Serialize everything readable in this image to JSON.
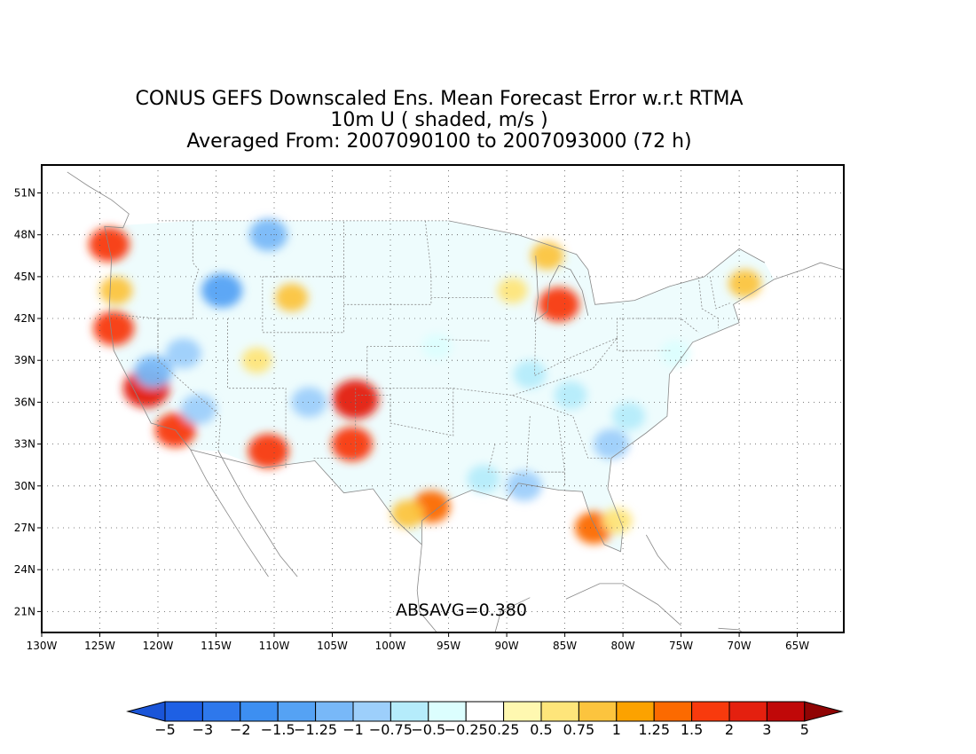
{
  "title": {
    "line1": "CONUS GEFS Downscaled Ens. Mean Forecast Error w.r.t RTMA",
    "line2": "10m U ( shaded, m/s )",
    "line3": "Averaged From: 2007090100 to 2007093000 (72 h)"
  },
  "map": {
    "projection": "latlon",
    "lon_range": [
      -130,
      -61
    ],
    "lat_range": [
      19.5,
      53
    ],
    "lon_ticks": [
      "130W",
      "125W",
      "120W",
      "115W",
      "110W",
      "105W",
      "100W",
      "95W",
      "90W",
      "85W",
      "80W",
      "75W",
      "70W",
      "65W"
    ],
    "lat_ticks": [
      "51N",
      "48N",
      "45N",
      "42N",
      "39N",
      "36N",
      "33N",
      "30N",
      "27N",
      "24N",
      "21N"
    ],
    "grid": true,
    "grid_style": "dotted"
  },
  "absavg_label": "ABSAVG=0.380",
  "colorbar": {
    "labels": [
      "−5",
      "−3",
      "−2",
      "−1.5",
      "−1.25",
      "−1",
      "−0.75",
      "−0.5",
      "−0.25",
      "0.25",
      "0.5",
      "0.75",
      "1",
      "1.25",
      "1.5",
      "2",
      "3",
      "5"
    ],
    "colors": [
      "#1e60e4",
      "#2e78ec",
      "#3d8ff1",
      "#55a2f4",
      "#78b8f8",
      "#9dcffb",
      "#b5ecfb",
      "#dcfefe",
      "#ffffff",
      "#fff8b0",
      "#fee57a",
      "#fcc43e",
      "#fca200",
      "#fc6a00",
      "#f83a0d",
      "#e4200f",
      "#c00808",
      "#9c0404"
    ],
    "arrow_left": "#1a55d8",
    "arrow_right": "#900404"
  },
  "anomalies": [
    {
      "region": "Pacific NW coast",
      "lat": 47.3,
      "lon": -124.2,
      "value": 1.5
    },
    {
      "region": "Oregon coast",
      "lat": 44.0,
      "lon": -123.6,
      "value": 0.75
    },
    {
      "region": "N California coast",
      "lat": 41.3,
      "lon": -123.8,
      "value": 1.5
    },
    {
      "region": "Central Valley",
      "lat": 37.0,
      "lon": -121.0,
      "value": 2.0
    },
    {
      "region": "Sierra Nevada",
      "lat": 38.2,
      "lon": -120.4,
      "value": -1.25
    },
    {
      "region": "Nevada",
      "lat": 39.5,
      "lon": -117.8,
      "value": -1.0
    },
    {
      "region": "Southern California",
      "lat": 34.0,
      "lon": -118.5,
      "value": 1.5
    },
    {
      "region": "Mojave",
      "lat": 35.5,
      "lon": -116.5,
      "value": -1.0
    },
    {
      "region": "Idaho",
      "lat": 44.0,
      "lon": -114.5,
      "value": -1.5
    },
    {
      "region": "Montana north",
      "lat": 48.0,
      "lon": -110.5,
      "value": -1.25
    },
    {
      "region": "Wyoming",
      "lat": 43.5,
      "lon": -108.5,
      "value": 0.75
    },
    {
      "region": "Utah",
      "lat": 39.0,
      "lon": -111.5,
      "value": 0.5
    },
    {
      "region": "Arizona south",
      "lat": 32.5,
      "lon": -110.5,
      "value": 1.5
    },
    {
      "region": "New Mexico",
      "lat": 36.0,
      "lon": -107.0,
      "value": -1.0
    },
    {
      "region": "Colorado front range",
      "lat": 36.2,
      "lon": -103.0,
      "value": 2.0
    },
    {
      "region": "West Texas",
      "lat": 33.0,
      "lon": -103.3,
      "value": 1.5
    },
    {
      "region": "Central Plains",
      "lat": 40.0,
      "lon": -96.0,
      "value": -0.5
    },
    {
      "region": "Texas Gulf coast",
      "lat": 28.5,
      "lon": -96.5,
      "value": 1.25
    },
    {
      "region": "South Texas",
      "lat": 28.0,
      "lon": -98.5,
      "value": 0.75
    },
    {
      "region": "Lake Michigan",
      "lat": 43.0,
      "lon": -85.5,
      "value": 1.5
    },
    {
      "region": "Upper Michigan",
      "lat": 46.5,
      "lon": -86.5,
      "value": 0.75
    },
    {
      "region": "Wisconsin",
      "lat": 44.0,
      "lon": -89.5,
      "value": 0.5
    },
    {
      "region": "Ohio Valley",
      "lat": 38.0,
      "lon": -88.0,
      "value": -0.75
    },
    {
      "region": "Lower Mississippi",
      "lat": 30.0,
      "lon": -88.5,
      "value": -1.0
    },
    {
      "region": "Gulf coast",
      "lat": 30.5,
      "lon": -92.0,
      "value": -0.75
    },
    {
      "region": "Southeast",
      "lat": 33.0,
      "lon": -81.0,
      "value": -1.0
    },
    {
      "region": "Carolinas",
      "lat": 35.0,
      "lon": -79.5,
      "value": -0.75
    },
    {
      "region": "Florida west",
      "lat": 27.0,
      "lon": -82.5,
      "value": 1.25
    },
    {
      "region": "Florida east",
      "lat": 27.5,
      "lon": -80.5,
      "value": 0.5
    },
    {
      "region": "New England",
      "lat": 44.5,
      "lon": -69.5,
      "value": 0.75
    },
    {
      "region": "Mid-Atlantic",
      "lat": 39.5,
      "lon": -75.5,
      "value": -0.5
    },
    {
      "region": "Kentucky",
      "lat": 36.5,
      "lon": -84.5,
      "value": -0.75
    }
  ]
}
